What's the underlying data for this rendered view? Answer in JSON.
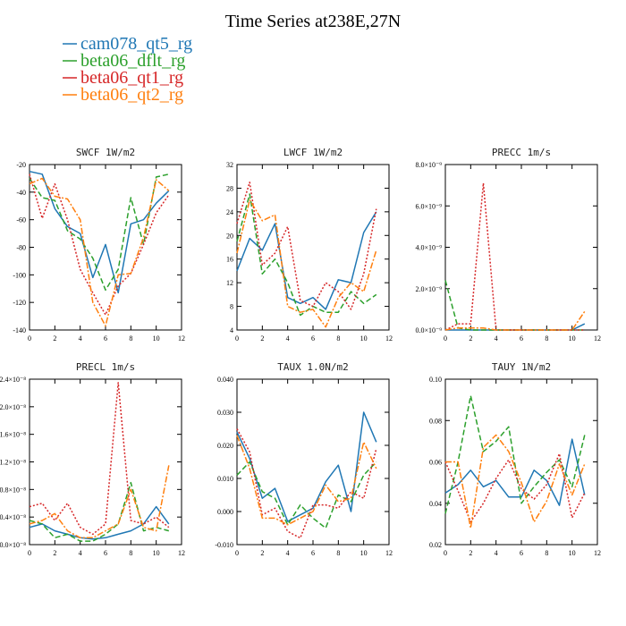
{
  "figure_title": "Time Series at238E,27N",
  "legend": [
    {
      "name": "cam078_qt5_rg",
      "color": "#1f77b4",
      "dash": "solid"
    },
    {
      "name": "beta06_dflt_rg",
      "color": "#2ca02c",
      "dash": "dash"
    },
    {
      "name": "beta06_qt1_rg",
      "color": "#d62728",
      "dash": "dot"
    },
    {
      "name": "beta06_qt2_rg",
      "color": "#ff7f0e",
      "dash": "dashdot"
    }
  ],
  "chart_data": [
    {
      "type": "line",
      "title": "SWCF  1W/m2",
      "x": [
        0,
        1,
        2,
        3,
        4,
        5,
        6,
        7,
        8,
        9,
        10,
        11
      ],
      "xlim": [
        0,
        12
      ],
      "xticks": [
        "0",
        "2",
        "4",
        "6",
        "8",
        "10",
        "12"
      ],
      "ylim": [
        -140,
        -20
      ],
      "yticks": [
        "-140",
        "-120",
        "-100",
        "-80",
        "-60",
        "-40",
        "-20"
      ],
      "series": [
        {
          "name": "cam078_qt5_rg",
          "values": [
            -25,
            -27,
            -52,
            -65,
            -70,
            -102,
            -78,
            -113,
            -63,
            -60,
            -48,
            -39
          ]
        },
        {
          "name": "beta06_dflt_rg",
          "values": [
            -30,
            -44,
            -46,
            -68,
            -74,
            -88,
            -111,
            -96,
            -44,
            -78,
            -29,
            -27
          ]
        },
        {
          "name": "beta06_qt1_rg",
          "values": [
            -27,
            -59,
            -34,
            -60,
            -96,
            -113,
            -129,
            -108,
            -99,
            -78,
            -55,
            -42
          ]
        },
        {
          "name": "beta06_qt2_rg",
          "values": [
            -34,
            -30,
            -43,
            -45,
            -60,
            -120,
            -137,
            -100,
            -99,
            -73,
            -31,
            -39
          ]
        }
      ]
    },
    {
      "type": "line",
      "title": "LWCF  1W/m2",
      "x": [
        0,
        1,
        2,
        3,
        4,
        5,
        6,
        7,
        8,
        9,
        10,
        11
      ],
      "xlim": [
        0,
        12
      ],
      "xticks": [
        "0",
        "2",
        "4",
        "6",
        "8",
        "10",
        "12"
      ],
      "ylim": [
        4,
        32
      ],
      "yticks": [
        "4",
        "8",
        "12",
        "16",
        "20",
        "24",
        "28",
        "32"
      ],
      "series": [
        {
          "name": "cam078_qt5_rg",
          "values": [
            14,
            19.5,
            17.5,
            22,
            9.5,
            8.5,
            9.5,
            7.5,
            12.5,
            12,
            20.5,
            24
          ]
        },
        {
          "name": "beta06_dflt_rg",
          "values": [
            19,
            27,
            13.5,
            16,
            12,
            6.5,
            8,
            7,
            7,
            10.5,
            8.5,
            10
          ]
        },
        {
          "name": "beta06_qt1_rg",
          "values": [
            22,
            29,
            15,
            17,
            21.5,
            9,
            8,
            12,
            10.5,
            7.5,
            13.5,
            24.5
          ]
        },
        {
          "name": "beta06_qt2_rg",
          "values": [
            17,
            26,
            22.5,
            23.5,
            8,
            7,
            7.5,
            4.5,
            9.5,
            12,
            10.5,
            17.5
          ]
        }
      ]
    },
    {
      "type": "line",
      "title": "PRECC  1m/s",
      "x": [
        0,
        1,
        2,
        3,
        4,
        5,
        6,
        7,
        8,
        9,
        10,
        11
      ],
      "xlim": [
        0,
        12
      ],
      "xticks": [
        "0",
        "2",
        "4",
        "6",
        "8",
        "10",
        "12"
      ],
      "ylim": [
        0,
        8
      ],
      "yticks": [
        "0.0×10⁻⁹",
        "2.0×10⁻⁹",
        "4.0×10⁻⁹",
        "6.0×10⁻⁹",
        "8.0×10⁻⁹"
      ],
      "series": [
        {
          "name": "cam078_qt5_rg",
          "values": [
            0,
            0,
            0,
            0,
            0,
            0,
            0,
            0,
            0,
            0,
            0,
            0.3
          ]
        },
        {
          "name": "beta06_dflt_rg",
          "values": [
            2.4,
            0.1,
            0,
            0,
            0,
            0,
            0,
            0,
            0,
            0,
            0,
            0
          ]
        },
        {
          "name": "beta06_qt1_rg",
          "values": [
            0,
            0.3,
            0.3,
            7.1,
            0,
            0,
            0,
            0,
            0,
            0,
            0,
            0
          ]
        },
        {
          "name": "beta06_qt2_rg",
          "values": [
            0,
            0.1,
            0.1,
            0.1,
            0,
            0,
            0,
            0,
            0,
            0,
            0,
            0.9
          ]
        }
      ]
    },
    {
      "type": "line",
      "title": "PRECL  1m/s",
      "x": [
        0,
        1,
        2,
        3,
        4,
        5,
        6,
        7,
        8,
        9,
        10,
        11
      ],
      "xlim": [
        0,
        12
      ],
      "xticks": [
        "0",
        "2",
        "4",
        "6",
        "8",
        "10",
        "12"
      ],
      "ylim": [
        0,
        2.4
      ],
      "yticks": [
        "0.0×10⁻⁸",
        "0.4×10⁻⁸",
        "0.8×10⁻⁸",
        "1.2×10⁻⁸",
        "1.6×10⁻⁸",
        "2.0×10⁻⁸",
        "2.4×10⁻⁸"
      ],
      "series": [
        {
          "name": "cam078_qt5_rg",
          "values": [
            0.25,
            0.3,
            0.2,
            0.15,
            0.1,
            0.08,
            0.1,
            0.15,
            0.2,
            0.3,
            0.55,
            0.3
          ]
        },
        {
          "name": "beta06_dflt_rg",
          "values": [
            0.35,
            0.3,
            0.1,
            0.15,
            0.05,
            0.05,
            0.15,
            0.3,
            0.9,
            0.2,
            0.25,
            0.2
          ]
        },
        {
          "name": "beta06_qt1_rg",
          "values": [
            0.55,
            0.6,
            0.35,
            0.6,
            0.25,
            0.15,
            0.3,
            2.35,
            0.35,
            0.3,
            0.4,
            0.25
          ]
        },
        {
          "name": "beta06_qt2_rg",
          "values": [
            0.3,
            0.35,
            0.45,
            0.2,
            0.1,
            0.1,
            0.2,
            0.3,
            0.8,
            0.25,
            0.2,
            1.15
          ]
        }
      ]
    },
    {
      "type": "line",
      "title": "TAUX  1.0N/m2",
      "x": [
        0,
        1,
        2,
        3,
        4,
        5,
        6,
        7,
        8,
        9,
        10,
        11
      ],
      "xlim": [
        0,
        12
      ],
      "xticks": [
        "0",
        "2",
        "4",
        "6",
        "8",
        "10",
        "12"
      ],
      "ylim": [
        -0.01,
        0.04
      ],
      "yticks": [
        "-0.010",
        "0.000",
        "0.010",
        "0.020",
        "0.030",
        "0.040"
      ],
      "series": [
        {
          "name": "cam078_qt5_rg",
          "values": [
            0.024,
            0.016,
            0.004,
            0.007,
            -0.003,
            -0.001,
            0.001,
            0.009,
            0.014,
            0,
            0.03,
            0.021
          ]
        },
        {
          "name": "beta06_dflt_rg",
          "values": [
            0.011,
            0.015,
            0.006,
            0.004,
            -0.004,
            0.002,
            -0.002,
            -0.005,
            0.005,
            0.003,
            0.011,
            0.015
          ]
        },
        {
          "name": "beta06_qt1_rg",
          "values": [
            0.025,
            0.018,
            -0.001,
            0.001,
            -0.006,
            -0.008,
            0.002,
            0.002,
            0.001,
            0.006,
            0.004,
            0.019
          ]
        },
        {
          "name": "beta06_qt2_rg",
          "values": [
            0.023,
            0.013,
            -0.002,
            -0.002,
            -0.004,
            -0.002,
            0,
            0.008,
            0.003,
            0.004,
            0.021,
            0.013
          ]
        }
      ]
    },
    {
      "type": "line",
      "title": "TAUY  1N/m2",
      "x": [
        0,
        1,
        2,
        3,
        4,
        5,
        6,
        7,
        8,
        9,
        10,
        11
      ],
      "xlim": [
        0,
        12
      ],
      "xticks": [
        "0",
        "2",
        "4",
        "6",
        "8",
        "10",
        "12"
      ],
      "ylim": [
        0.02,
        0.1
      ],
      "yticks": [
        "0.02",
        "0.04",
        "0.06",
        "0.08",
        "0.10"
      ],
      "series": [
        {
          "name": "cam078_qt5_rg",
          "values": [
            0.045,
            0.049,
            0.056,
            0.048,
            0.051,
            0.043,
            0.043,
            0.056,
            0.051,
            0.039,
            0.071,
            0.044
          ]
        },
        {
          "name": "beta06_dflt_rg",
          "values": [
            0.035,
            0.06,
            0.092,
            0.065,
            0.07,
            0.077,
            0.04,
            0.048,
            0.055,
            0.061,
            0.048,
            0.073
          ]
        },
        {
          "name": "beta06_qt1_rg",
          "values": [
            0.06,
            0.046,
            0.031,
            0.04,
            0.052,
            0.061,
            0.047,
            0.042,
            0.049,
            0.064,
            0.033,
            0.045
          ]
        },
        {
          "name": "beta06_qt2_rg",
          "values": [
            0.06,
            0.06,
            0.028,
            0.067,
            0.073,
            0.065,
            0.05,
            0.031,
            0.041,
            0.059,
            0.044,
            0.059
          ]
        }
      ]
    }
  ]
}
